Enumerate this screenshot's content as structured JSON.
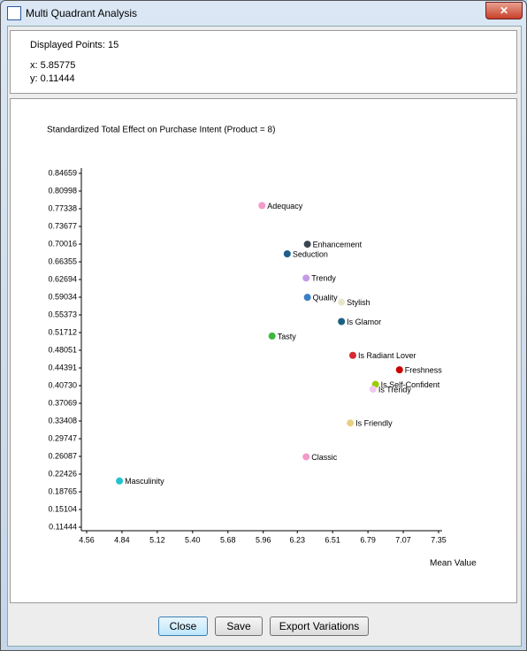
{
  "window": {
    "title": "Multi Quadrant Analysis"
  },
  "info": {
    "points": "Displayed Points: 15",
    "x": "x: 5.85775",
    "y": "y: 0.11444"
  },
  "buttons": [
    "Close",
    "Save",
    "Export Variations"
  ],
  "chart_data": {
    "type": "scatter",
    "title": "Standardized Total Effect on Purchase Intent (Product = 8)",
    "x_label": "Mean Value",
    "xlim": [
      4.56,
      7.35
    ],
    "xticks": [
      4.56,
      4.84,
      5.12,
      {
        "value": 5.4,
        "label": "5.40"
      },
      5.68,
      5.96,
      6.23,
      6.51,
      6.79,
      7.07,
      7.35
    ],
    "ylim": [
      0.11444,
      0.84659
    ],
    "yticks": [
      0.84659,
      0.80998,
      0.77338,
      0.73677,
      0.70016,
      0.66355,
      0.62694,
      0.59034,
      0.55373,
      0.51712,
      0.48051,
      0.44391,
      {
        "value": 0.4073,
        "label": "0.40730"
      },
      0.37069,
      0.33408,
      0.29747,
      0.26087,
      0.22426,
      0.18765,
      0.15104,
      0.11444
    ],
    "grid": false,
    "series": [
      {
        "name": "Adequacy",
        "color": "#f49ac8",
        "x": [
          5.95
        ],
        "values": [
          0.78
        ]
      },
      {
        "name": "Enhancement",
        "color": "#3a4552",
        "x": [
          6.31
        ],
        "values": [
          0.7
        ]
      },
      {
        "name": "Seduction",
        "color": "#1f5f8b",
        "x": [
          6.15
        ],
        "values": [
          0.68
        ]
      },
      {
        "name": "Trendy",
        "color": "#c49be6",
        "x": [
          6.3
        ],
        "values": [
          0.63
        ]
      },
      {
        "name": "Quality",
        "color": "#3b7fc4",
        "x": [
          6.31
        ],
        "values": [
          0.59
        ]
      },
      {
        "name": "Stylish",
        "color": "#e8e6c8",
        "x": [
          6.58
        ],
        "values": [
          0.58
        ]
      },
      {
        "name": "Is Glamor",
        "color": "#1a6080",
        "x": [
          6.58
        ],
        "values": [
          0.54
        ]
      },
      {
        "name": "Tasty",
        "color": "#3cb83c",
        "x": [
          6.03
        ],
        "values": [
          0.51
        ]
      },
      {
        "name": "Is Radiant Lover",
        "color": "#d62a30",
        "x": [
          6.67
        ],
        "values": [
          0.47
        ]
      },
      {
        "name": "Freshness",
        "color": "#cc0000",
        "x": [
          7.04
        ],
        "values": [
          0.44
        ]
      },
      {
        "name": "Is Self-Confident",
        "color": "#99cc00",
        "x": [
          6.85
        ],
        "values": [
          0.41
        ]
      },
      {
        "name": "Is Trendy",
        "color": "#f0c8f0",
        "x": [
          6.83
        ],
        "values": [
          0.4
        ]
      },
      {
        "name": "Is Friendly",
        "color": "#e8d080",
        "x": [
          6.65
        ],
        "values": [
          0.33
        ]
      },
      {
        "name": "Classic",
        "color": "#f29ac8",
        "x": [
          6.3
        ],
        "values": [
          0.26
        ]
      },
      {
        "name": "Masculinity",
        "color": "#22c4d0",
        "x": [
          4.82
        ],
        "values": [
          0.21
        ]
      }
    ]
  }
}
